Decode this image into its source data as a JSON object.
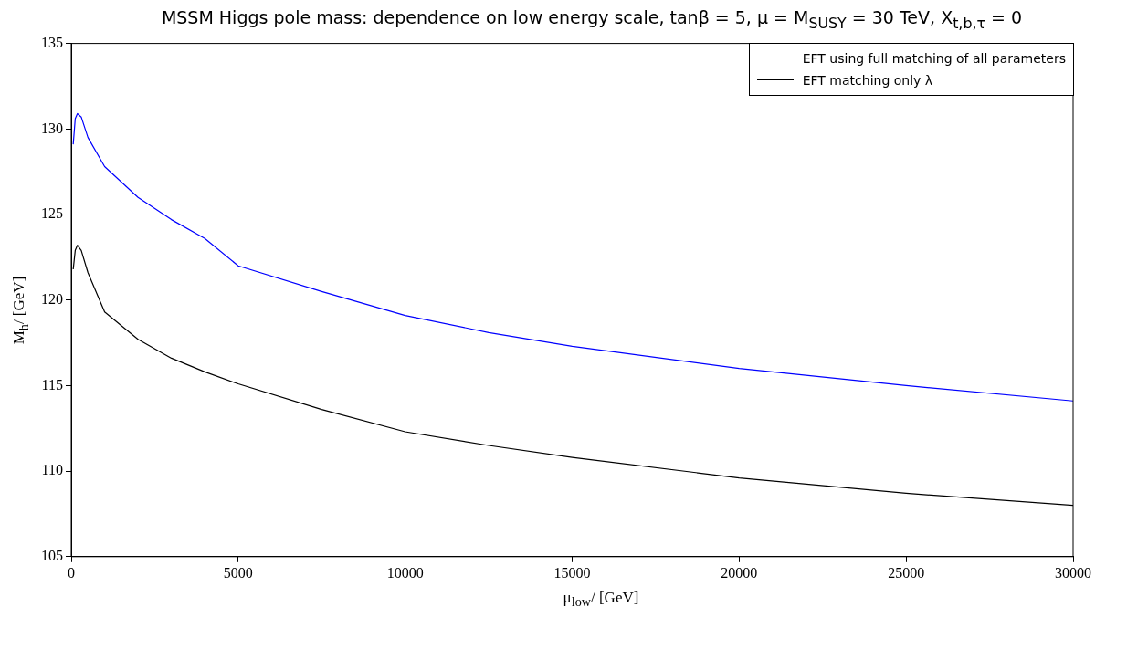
{
  "chart_data": {
    "type": "line",
    "title": "MSSM Higgs pole mass: dependence on low energy scale, tanβ = 5, μ = M$_{SUSY}$ = 30 TeV, X$_{t,b,τ}$ = 0",
    "xlabel": "μ$_{low}$/ [GeV]",
    "ylabel": "M$_{h}$/ [GeV]",
    "xlim": [
      0,
      30000
    ],
    "xticks": [
      0,
      5000,
      10000,
      15000,
      20000,
      25000,
      30000
    ],
    "ylim": [
      105,
      135
    ],
    "yticks": [
      105,
      110,
      115,
      120,
      125,
      130,
      135
    ],
    "grid": false,
    "legend": "top right",
    "marker": "none",
    "line_style": "solid",
    "series": [
      {
        "name": "EFT using full matching of all parameters",
        "color": "#0000ff",
        "x": [
          60,
          120,
          185,
          300,
          500,
          1000,
          2000,
          3000,
          4000,
          5000,
          7500,
          10000,
          12500,
          15000,
          20000,
          25000,
          30000
        ],
        "values": [
          129.1,
          130.6,
          130.9,
          130.7,
          129.5,
          127.8,
          126.0,
          124.7,
          123.6,
          122.0,
          120.5,
          119.1,
          118.1,
          117.3,
          116.0,
          115.0,
          114.1
        ]
      },
      {
        "name": "EFT matching only λ",
        "color": "#000000",
        "x": [
          60,
          120,
          185,
          300,
          500,
          1000,
          2000,
          3000,
          4000,
          5000,
          7500,
          10000,
          12500,
          15000,
          20000,
          25000,
          30000
        ],
        "values": [
          121.8,
          122.9,
          123.2,
          122.9,
          121.6,
          119.3,
          117.7,
          116.6,
          115.8,
          115.1,
          113.6,
          112.3,
          111.5,
          110.8,
          109.6,
          108.7,
          108.0
        ]
      }
    ]
  }
}
